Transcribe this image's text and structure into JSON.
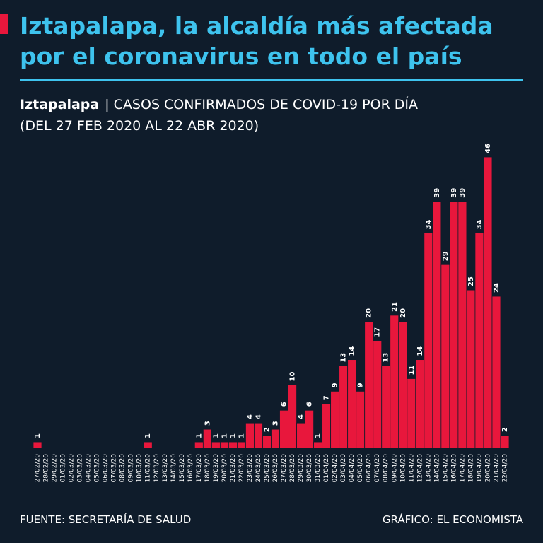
{
  "chart_data": {
    "type": "bar",
    "title": [
      "Iztapalapa, la alcaldía más afectada",
      "por el coronavirus en todo el país"
    ],
    "subtitle_bold": "Iztapalapa",
    "subtitle": "| CASOS CONFIRMADOS DE COVID-19 POR DÍA",
    "subtitle_range": "(DEL 27 FEB 2020 AL 22 ABR 2020)",
    "source": "FUENTE: SECRETARÍA DE SALUD",
    "credit": "GRÁFICO: EL ECONOMISTA",
    "color": "#e8173c",
    "categories": [
      "27/02/20",
      "28/02/20",
      "29/02/20",
      "01/03/20",
      "02/03/20",
      "03/03/20",
      "04/03/20",
      "05/03/20",
      "06/03/20",
      "07/03/20",
      "08/03/20",
      "09/03/20",
      "10/03/20",
      "11/03/20",
      "12/03/20",
      "13/03/20",
      "14/03/20",
      "15/03/20",
      "16/03/20",
      "17/03/20",
      "18/03/20",
      "19/03/20",
      "20/03/20",
      "21/03/20",
      "22/03/20",
      "23/03/20",
      "24/03/20",
      "25/03/20",
      "26/03/20",
      "27/03/20",
      "28/03/20",
      "29/03/20",
      "30/03/20",
      "31/03/20",
      "01/04/20",
      "02/04/20",
      "03/04/20",
      "04/04/20",
      "05/04/20",
      "06/04/20",
      "07/04/20",
      "08/04/20",
      "09/04/20",
      "10/04/20",
      "11/04/20",
      "12/04/20",
      "13/04/20",
      "14/04/20",
      "15/04/20",
      "16/04/20",
      "17/04/20",
      "18/04/20",
      "19/04/20",
      "20/04/20",
      "21/04/20",
      "22/04/20"
    ],
    "values": [
      1,
      0,
      0,
      0,
      0,
      0,
      0,
      0,
      0,
      0,
      0,
      0,
      0,
      1,
      0,
      0,
      0,
      0,
      0,
      1,
      3,
      1,
      1,
      1,
      1,
      4,
      4,
      2,
      3,
      6,
      10,
      4,
      6,
      1,
      7,
      9,
      13,
      14,
      9,
      20,
      17,
      13,
      21,
      20,
      11,
      14,
      34,
      39,
      29,
      39,
      39,
      25,
      34,
      46,
      24,
      2
    ]
  }
}
